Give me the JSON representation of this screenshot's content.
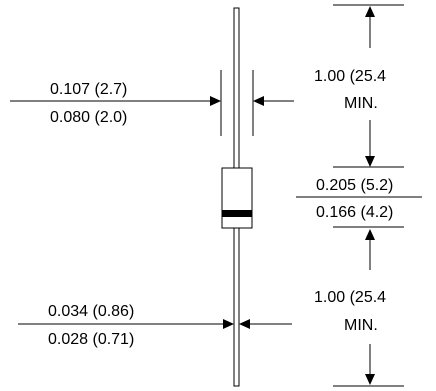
{
  "lead_diameter": {
    "max": "0.107 (2.7)",
    "min": "0.080 (2.0)"
  },
  "lead_length_top": {
    "value": "1.00 (25.4",
    "qualifier": "MIN."
  },
  "body_length": {
    "max": "0.205 (5.2)",
    "min": "0.166 (4.2)"
  },
  "wire_diameter": {
    "max": "0.034 (0.86)",
    "min": "0.028 (0.71)"
  },
  "lead_length_bottom": {
    "value": "1.00 (25.4",
    "qualifier": "MIN."
  },
  "colors": {
    "ink": "#000000",
    "background": "#ffffff"
  }
}
